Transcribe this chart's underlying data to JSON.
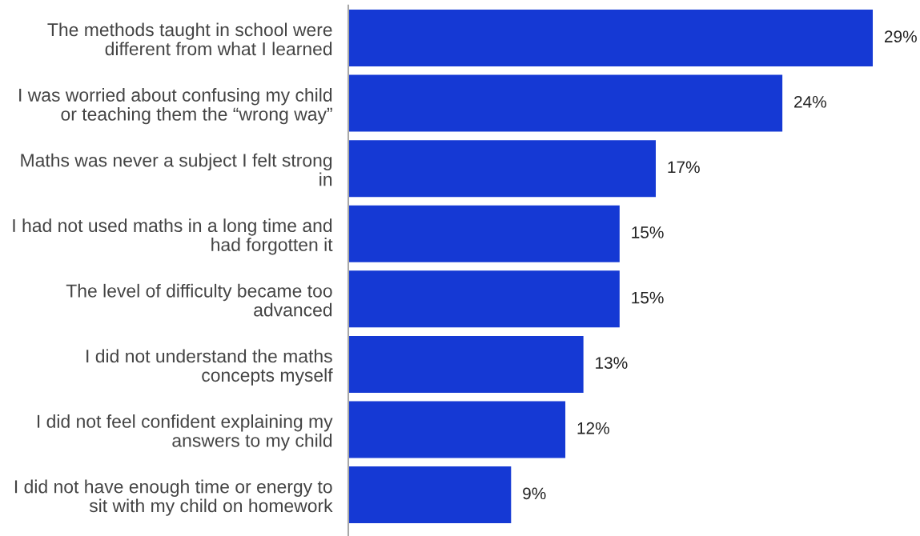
{
  "chart_data": {
    "type": "bar",
    "orientation": "horizontal",
    "categories": [
      "The methods taught in school were\ndifferent from what I learned",
      "I was worried about confusing my child\nor teaching them the “wrong way”",
      "Maths was never a subject I felt strong\nin",
      "I had not used maths in a long time and\nhad forgotten it",
      "The level of difficulty became too\nadvanced",
      "I did not understand the maths\nconcepts myself",
      "I did not feel confident explaining my\nanswers to my child",
      "I did not have enough time or energy to\nsit with my child on homework"
    ],
    "values": [
      29,
      24,
      17,
      15,
      15,
      13,
      12,
      9
    ],
    "value_labels": [
      "29%",
      "24%",
      "17%",
      "15%",
      "15%",
      "13%",
      "12%",
      "9%"
    ],
    "color": "#1539d4",
    "tick_labels": "y",
    "grid": false,
    "legend": false
  }
}
